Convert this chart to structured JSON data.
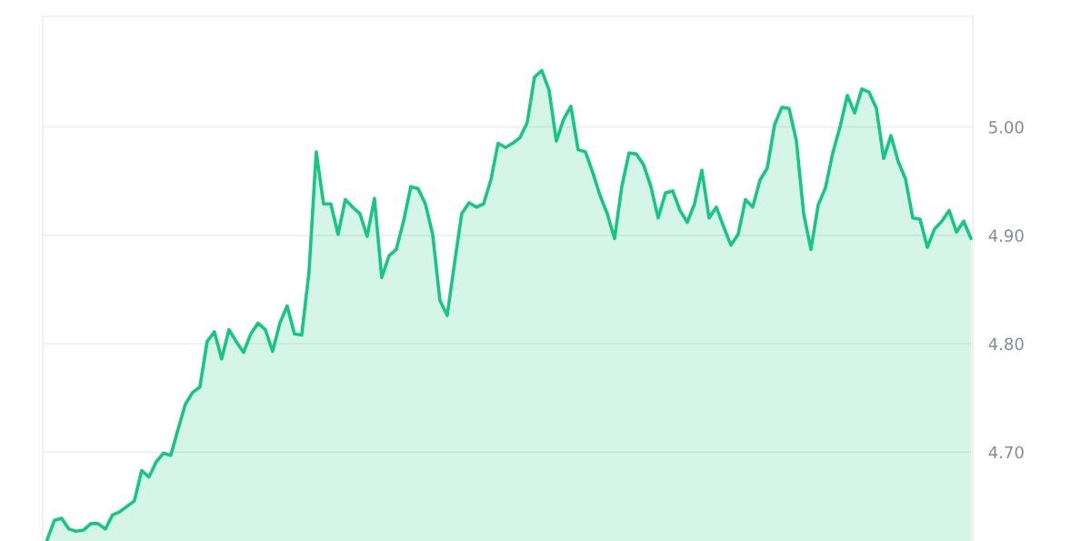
{
  "chart_data": {
    "type": "area",
    "categories": [
      null,
      null,
      null,
      null,
      null,
      null,
      null,
      null,
      null,
      null,
      null,
      null,
      null,
      null,
      null,
      null,
      null,
      null,
      null,
      null,
      null,
      null,
      null,
      null,
      null,
      null,
      null,
      null,
      null,
      null,
      null,
      null,
      null,
      null,
      null,
      null,
      null,
      null,
      null,
      null,
      null,
      null,
      null,
      null,
      null,
      null,
      null,
      null,
      null,
      null,
      null,
      null,
      null,
      null,
      null,
      null,
      null,
      null,
      null,
      null,
      null,
      null,
      null,
      null,
      null,
      null,
      null,
      null,
      null,
      null,
      null,
      null,
      null,
      null,
      null,
      null,
      null,
      null,
      null,
      null,
      null,
      null,
      null,
      null,
      null,
      null,
      null,
      null,
      null,
      null,
      null,
      null,
      null,
      null,
      null,
      null,
      null,
      null,
      null,
      null,
      null,
      null,
      null,
      null,
      null,
      null,
      null,
      null,
      null,
      null,
      null,
      null,
      null,
      null,
      null,
      null,
      null,
      null,
      null,
      null,
      null,
      null,
      null,
      null,
      null,
      null,
      null,
      null
    ],
    "series": [
      {
        "color": "#16c784",
        "values": [
          4.619,
          4.637,
          4.639,
          4.629,
          4.627,
          4.628,
          4.634,
          4.634,
          4.629,
          4.642,
          4.645,
          4.65,
          4.655,
          4.683,
          4.677,
          4.691,
          4.699,
          4.697,
          4.721,
          4.744,
          4.755,
          4.76,
          4.802,
          4.811,
          4.786,
          4.813,
          4.802,
          4.792,
          4.809,
          4.819,
          4.813,
          4.793,
          4.819,
          4.835,
          4.809,
          4.808,
          4.866,
          4.977,
          4.929,
          4.929,
          4.901,
          4.933,
          4.926,
          4.92,
          4.899,
          4.934,
          4.861,
          4.881,
          4.887,
          4.913,
          4.945,
          4.943,
          4.929,
          4.901,
          4.84,
          4.826,
          4.874,
          4.92,
          4.93,
          4.926,
          4.929,
          4.951,
          4.985,
          4.981,
          4.985,
          4.99,
          5.004,
          5.046,
          5.052,
          5.034,
          4.987,
          5.007,
          5.019,
          4.979,
          4.977,
          4.958,
          4.937,
          4.92,
          4.897,
          4.945,
          4.976,
          4.975,
          4.965,
          4.945,
          4.916,
          4.939,
          4.941,
          4.923,
          4.912,
          4.929,
          4.96,
          4.916,
          4.926,
          4.908,
          4.891,
          4.901,
          4.933,
          4.926,
          4.951,
          4.962,
          5.002,
          5.018,
          5.017,
          4.987,
          4.92,
          4.887,
          4.928,
          4.944,
          4.976,
          5.0,
          5.029,
          5.013,
          5.035,
          5.032,
          5.017,
          4.971,
          4.992,
          4.968,
          4.952,
          4.916,
          4.915,
          4.889,
          4.906,
          4.913,
          4.923,
          4.903,
          4.913,
          4.897
        ]
      }
    ],
    "ylim": [
      4.618,
      5.102
    ],
    "yticks": [
      {
        "value": 4.7,
        "label": "4.70"
      },
      {
        "value": 4.8,
        "label": "4.80"
      },
      {
        "value": 4.9,
        "label": "4.90"
      },
      {
        "value": 5.0,
        "label": "5.00"
      }
    ],
    "grid": "y",
    "tick_labels": "y"
  }
}
